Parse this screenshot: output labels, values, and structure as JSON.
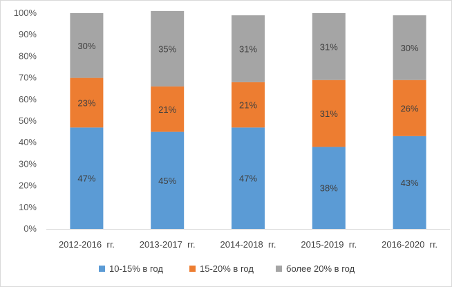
{
  "chart_data": {
    "type": "bar",
    "stacked": true,
    "percent_stacked": true,
    "categories": [
      "2012-2016  гг.",
      "2013-2017  гг.",
      "2014-2018  гг.",
      "2015-2019  гг.",
      "2016-2020  гг."
    ],
    "series": [
      {
        "name": "10-15% в год",
        "values": [
          47,
          45,
          47,
          38,
          43
        ],
        "labels": [
          "47%",
          "45%",
          "47%",
          "38%",
          "43%"
        ],
        "color": "#5b9bd5"
      },
      {
        "name": "15-20% в год",
        "values": [
          23,
          21,
          21,
          31,
          26
        ],
        "labels": [
          "23%",
          "21%",
          "21%",
          "31%",
          "26%"
        ],
        "color": "#ed7d31"
      },
      {
        "name": "более 20% в год",
        "values": [
          30,
          35,
          31,
          31,
          30
        ],
        "labels": [
          "30%",
          "35%",
          "31%",
          "31%",
          "30%"
        ],
        "color": "#a5a5a5"
      }
    ],
    "yticks": [
      "0%",
      "10%",
      "20%",
      "30%",
      "40%",
      "50%",
      "60%",
      "70%",
      "80%",
      "90%",
      "100%"
    ],
    "ylim": [
      0,
      100
    ],
    "grid": false,
    "legend_position": "bottom",
    "title": "",
    "xlabel": "",
    "ylabel": ""
  }
}
